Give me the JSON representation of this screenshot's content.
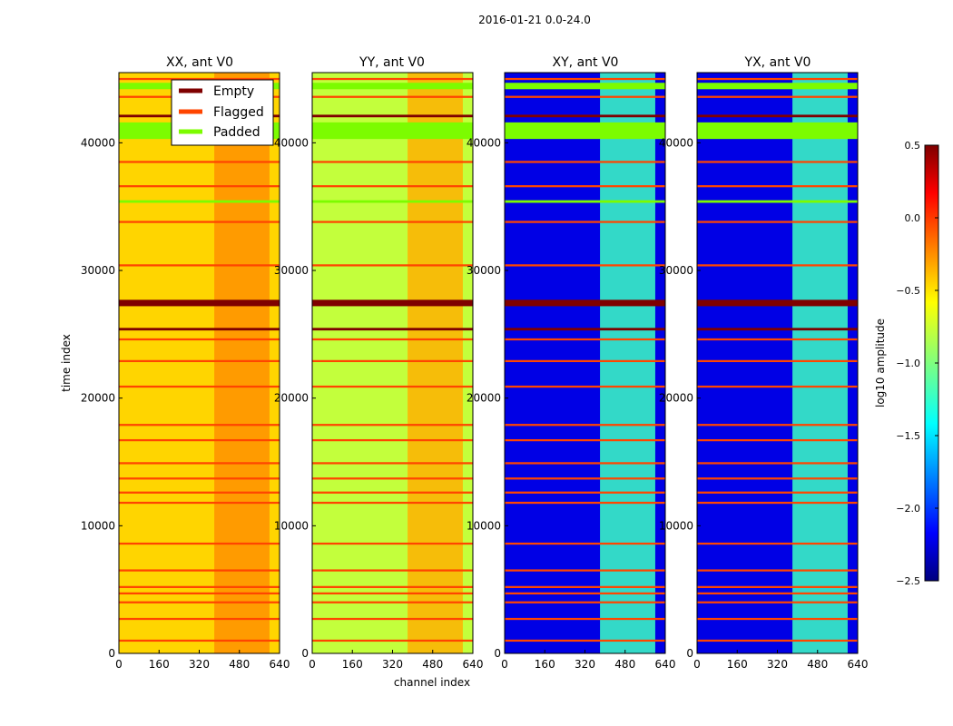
{
  "suptitle": "2016-01-21 0.0-24.0",
  "chart_data": {
    "type": "heatmap",
    "xlabel": "channel index",
    "ylabel": "time index",
    "xlim": [
      0,
      640
    ],
    "ylim": [
      0,
      45500
    ],
    "xticks": [
      0,
      160,
      320,
      480,
      640
    ],
    "yticks": [
      0,
      10000,
      20000,
      30000,
      40000
    ],
    "xtick_labels": [
      "0",
      "160",
      "320",
      "480",
      "640"
    ],
    "ytick_labels": [
      "0",
      "10000",
      "20000",
      "30000",
      "40000"
    ],
    "panels": [
      {
        "title": "XX, ant V0",
        "base_level": -0.5,
        "band_level": -0.3
      },
      {
        "title": "YY, ant V0",
        "base_level": -0.8,
        "band_level": -0.4
      },
      {
        "title": "XY, ant V0",
        "base_level": -2.2,
        "band_level": -1.2
      },
      {
        "title": "YX, ant V0",
        "base_level": -2.2,
        "band_level": -1.2
      }
    ],
    "legend": {
      "position": "top-right of first panel",
      "entries": [
        {
          "label": "Empty",
          "color": "#7f0000"
        },
        {
          "label": "Flagged",
          "color": "#ff4500"
        },
        {
          "label": "Padded",
          "color": "#7cfc00"
        }
      ]
    },
    "padded_row_ranges": [
      [
        40300,
        41600
      ],
      [
        44200,
        44700
      ],
      [
        35300,
        35500
      ]
    ],
    "empty_row_ranges": [
      [
        27200,
        27700
      ],
      [
        25300,
        25500
      ],
      [
        42000,
        42200
      ]
    ],
    "flagged_rows": [
      1000,
      2700,
      4000,
      4700,
      5200,
      6500,
      8600,
      11800,
      12600,
      13700,
      14900,
      16700,
      17900,
      20900,
      22900,
      24600,
      30400,
      33800,
      36600,
      38500,
      43600,
      45000
    ],
    "colorbar": {
      "label": "log10 amplitude",
      "min": -2.5,
      "max": 0.5,
      "ticks": [
        0.5,
        0.0,
        -0.5,
        -1.0,
        -1.5,
        -2.0,
        -2.5
      ],
      "tick_labels": [
        "0.5",
        "0.0",
        "−0.5",
        "−1.0",
        "−1.5",
        "−2.0",
        "−2.5"
      ],
      "colormap": "jet"
    }
  }
}
